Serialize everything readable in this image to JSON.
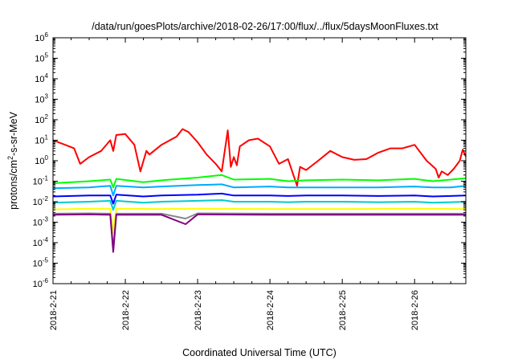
{
  "chart_data": {
    "type": "line",
    "title": "/data/run/goesPlots/archive/2018-02-26/17:00/flux/../flux/5daysMoonFluxes.txt",
    "xlabel": "Coordinated Universal Time (UTC)",
    "ylabel": "protons/cm2-s-sr-MeV",
    "ylabel_parts": {
      "pre": "protons/cm",
      "sup": "2",
      "post": "-s-sr-MeV"
    },
    "y_scale": "log",
    "ylim": [
      1e-06,
      1000000.0
    ],
    "y_ticks": [
      {
        "value": 1e-06,
        "base": "10",
        "exp": "-6"
      },
      {
        "value": 1e-05,
        "base": "10",
        "exp": "-5"
      },
      {
        "value": 0.0001,
        "base": "10",
        "exp": "-4"
      },
      {
        "value": 0.001,
        "base": "10",
        "exp": "-3"
      },
      {
        "value": 0.01,
        "base": "10",
        "exp": "-2"
      },
      {
        "value": 0.1,
        "base": "10",
        "exp": "-1"
      },
      {
        "value": 1.0,
        "base": "10",
        "exp": "0"
      },
      {
        "value": 10.0,
        "base": "10",
        "exp": "1"
      },
      {
        "value": 100.0,
        "base": "10",
        "exp": "2"
      },
      {
        "value": 1000.0,
        "base": "10",
        "exp": "3"
      },
      {
        "value": 10000.0,
        "base": "10",
        "exp": "4"
      },
      {
        "value": 100000.0,
        "base": "10",
        "exp": "5"
      },
      {
        "value": 1000000.0,
        "base": "10",
        "exp": "6"
      }
    ],
    "xlim": [
      "2018-02-21T00:00",
      "2018-02-26T17:00"
    ],
    "x_ticks": [
      {
        "value": "2018-02-21T00:00",
        "label": "2018-2-21"
      },
      {
        "value": "2018-02-22T00:00",
        "label": "2018-2-22"
      },
      {
        "value": "2018-02-23T00:00",
        "label": "2018-2-23"
      },
      {
        "value": "2018-02-24T00:00",
        "label": "2018-2-24"
      },
      {
        "value": "2018-02-25T00:00",
        "label": "2018-2-25"
      },
      {
        "value": "2018-02-26T00:00",
        "label": "2018-2-26"
      }
    ],
    "grid": false,
    "series": [
      {
        "color": "#ff0000",
        "x": [
          "2018-02-21T00:00",
          "2018-02-21T04:00",
          "2018-02-21T07:00",
          "2018-02-21T09:00",
          "2018-02-21T12:00",
          "2018-02-21T16:00",
          "2018-02-21T19:00",
          "2018-02-21T20:00",
          "2018-02-21T21:00",
          "2018-02-22T00:00",
          "2018-02-22T03:00",
          "2018-02-22T05:00",
          "2018-02-22T07:00",
          "2018-02-22T08:00",
          "2018-02-22T12:00",
          "2018-02-22T17:00",
          "2018-02-22T19:00",
          "2018-02-22T21:00",
          "2018-02-23T00:00",
          "2018-02-23T03:00",
          "2018-02-23T06:00",
          "2018-02-23T08:00",
          "2018-02-23T10:00",
          "2018-02-23T11:00",
          "2018-02-23T12:00",
          "2018-02-23T13:00",
          "2018-02-23T14:00",
          "2018-02-23T17:00",
          "2018-02-23T20:00",
          "2018-02-24T00:00",
          "2018-02-24T03:00",
          "2018-02-24T06:00",
          "2018-02-24T09:00",
          "2018-02-24T10:00",
          "2018-02-24T12:00",
          "2018-02-24T16:00",
          "2018-02-24T20:00",
          "2018-02-25T00:00",
          "2018-02-25T04:00",
          "2018-02-25T08:00",
          "2018-02-25T12:00",
          "2018-02-25T16:00",
          "2018-02-25T20:00",
          "2018-02-26T00:00",
          "2018-02-26T04:00",
          "2018-02-26T07:00",
          "2018-02-26T08:00",
          "2018-02-26T09:00",
          "2018-02-26T11:00",
          "2018-02-26T13:00",
          "2018-02-26T15:00",
          "2018-02-26T16:00",
          "2018-02-26T17:00"
        ],
        "y": [
          10,
          6,
          4,
          0.7,
          1.5,
          3,
          10,
          3,
          18,
          20,
          6,
          0.3,
          3,
          2,
          6,
          15,
          35,
          25,
          8,
          2,
          0.7,
          0.3,
          30,
          0.5,
          1.5,
          0.6,
          5,
          10,
          12,
          5,
          0.7,
          1.2,
          0.06,
          0.5,
          0.35,
          1,
          3,
          1.5,
          1.1,
          1.2,
          2.5,
          4,
          4,
          6,
          1,
          0.4,
          0.15,
          0.3,
          0.2,
          0.4,
          1,
          3.5,
          1.6
        ]
      },
      {
        "color": "#00ff00",
        "x": [
          "2018-02-21T00:00",
          "2018-02-21T12:00",
          "2018-02-21T19:00",
          "2018-02-21T20:00",
          "2018-02-21T21:00",
          "2018-02-22T06:00",
          "2018-02-22T12:00",
          "2018-02-23T00:00",
          "2018-02-23T08:00",
          "2018-02-23T12:00",
          "2018-02-24T00:00",
          "2018-02-24T06:00",
          "2018-02-24T12:00",
          "2018-02-25T00:00",
          "2018-02-25T12:00",
          "2018-02-26T00:00",
          "2018-02-26T06:00",
          "2018-02-26T12:00",
          "2018-02-26T17:00"
        ],
        "y": [
          0.08,
          0.1,
          0.12,
          0.05,
          0.13,
          0.09,
          0.11,
          0.15,
          0.2,
          0.12,
          0.13,
          0.1,
          0.11,
          0.12,
          0.11,
          0.13,
          0.1,
          0.12,
          0.14
        ]
      },
      {
        "color": "#00aaff",
        "x": [
          "2018-02-21T00:00",
          "2018-02-21T12:00",
          "2018-02-21T19:00",
          "2018-02-21T20:00",
          "2018-02-21T21:00",
          "2018-02-22T06:00",
          "2018-02-22T12:00",
          "2018-02-23T00:00",
          "2018-02-23T08:00",
          "2018-02-23T12:00",
          "2018-02-24T00:00",
          "2018-02-24T06:00",
          "2018-02-24T12:00",
          "2018-02-25T00:00",
          "2018-02-25T12:00",
          "2018-02-26T00:00",
          "2018-02-26T06:00",
          "2018-02-26T12:00",
          "2018-02-26T17:00"
        ],
        "y": [
          0.045,
          0.05,
          0.06,
          0.02,
          0.06,
          0.05,
          0.055,
          0.065,
          0.07,
          0.05,
          0.055,
          0.05,
          0.05,
          0.05,
          0.05,
          0.055,
          0.05,
          0.05,
          0.06
        ]
      },
      {
        "color": "#0000ff",
        "x": [
          "2018-02-21T00:00",
          "2018-02-21T12:00",
          "2018-02-21T19:00",
          "2018-02-21T20:00",
          "2018-02-21T21:00",
          "2018-02-22T06:00",
          "2018-02-22T12:00",
          "2018-02-23T00:00",
          "2018-02-23T08:00",
          "2018-02-23T12:00",
          "2018-02-24T00:00",
          "2018-02-24T06:00",
          "2018-02-24T12:00",
          "2018-02-25T00:00",
          "2018-02-25T12:00",
          "2018-02-26T00:00",
          "2018-02-26T06:00",
          "2018-02-26T12:00",
          "2018-02-26T17:00"
        ],
        "y": [
          0.018,
          0.02,
          0.02,
          0.008,
          0.022,
          0.018,
          0.02,
          0.022,
          0.025,
          0.02,
          0.02,
          0.019,
          0.02,
          0.02,
          0.019,
          0.02,
          0.018,
          0.019,
          0.02
        ]
      },
      {
        "color": "#00cccc",
        "x": [
          "2018-02-21T00:00",
          "2018-02-21T12:00",
          "2018-02-21T19:00",
          "2018-02-21T20:00",
          "2018-02-21T21:00",
          "2018-02-22T06:00",
          "2018-02-22T12:00",
          "2018-02-23T00:00",
          "2018-02-23T08:00",
          "2018-02-23T12:00",
          "2018-02-24T00:00",
          "2018-02-24T06:00",
          "2018-02-24T12:00",
          "2018-02-25T00:00",
          "2018-02-25T12:00",
          "2018-02-26T00:00",
          "2018-02-26T06:00",
          "2018-02-26T12:00",
          "2018-02-26T17:00"
        ],
        "y": [
          0.009,
          0.01,
          0.011,
          0.004,
          0.011,
          0.009,
          0.01,
          0.011,
          0.012,
          0.01,
          0.01,
          0.0095,
          0.01,
          0.01,
          0.0095,
          0.01,
          0.009,
          0.0095,
          0.01
        ]
      },
      {
        "color": "#ffff00",
        "x": [
          "2018-02-21T00:00",
          "2018-02-21T12:00",
          "2018-02-21T19:00",
          "2018-02-21T20:00",
          "2018-02-21T21:00",
          "2018-02-22T12:00",
          "2018-02-23T00:00",
          "2018-02-24T00:00",
          "2018-02-25T00:00",
          "2018-02-26T00:00",
          "2018-02-26T17:00"
        ],
        "y": [
          0.0042,
          0.0045,
          0.0045,
          0.0003,
          0.0045,
          0.0044,
          0.0045,
          0.0044,
          0.0044,
          0.0045,
          0.0044
        ]
      },
      {
        "color": "#888888",
        "x": [
          "2018-02-21T00:00",
          "2018-02-21T12:00",
          "2018-02-21T19:00",
          "2018-02-21T20:00",
          "2018-02-21T21:00",
          "2018-02-22T12:00",
          "2018-02-22T20:00",
          "2018-02-23T00:00",
          "2018-02-24T00:00",
          "2018-02-25T00:00",
          "2018-02-26T00:00",
          "2018-02-26T17:00"
        ],
        "y": [
          0.0026,
          0.0027,
          0.0026,
          5e-05,
          0.0026,
          0.0026,
          0.0015,
          0.0027,
          0.0026,
          0.0026,
          0.0026,
          0.0026
        ]
      },
      {
        "color": "#800080",
        "x": [
          "2018-02-21T00:00",
          "2018-02-21T12:00",
          "2018-02-21T19:00",
          "2018-02-21T20:00",
          "2018-02-21T21:00",
          "2018-02-22T12:00",
          "2018-02-22T20:00",
          "2018-02-23T00:00",
          "2018-02-24T00:00",
          "2018-02-25T00:00",
          "2018-02-26T00:00",
          "2018-02-26T17:00"
        ],
        "y": [
          0.0023,
          0.0024,
          0.0023,
          3.5e-05,
          0.0023,
          0.0023,
          0.0008,
          0.0024,
          0.0023,
          0.0023,
          0.0023,
          0.0023
        ]
      }
    ]
  }
}
